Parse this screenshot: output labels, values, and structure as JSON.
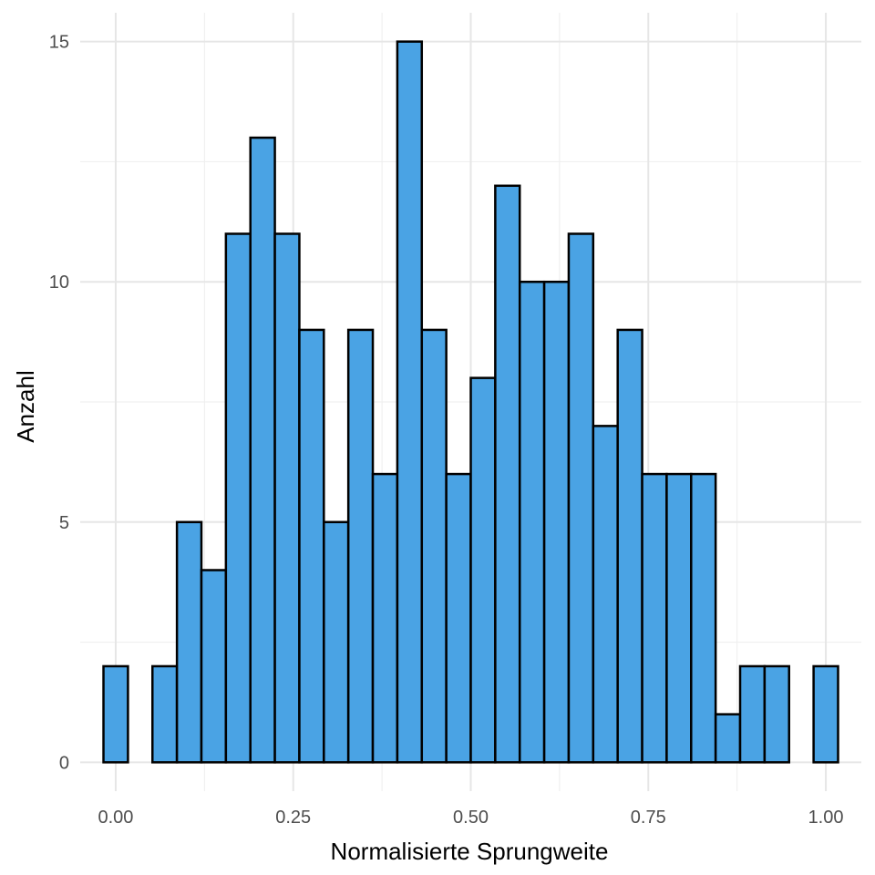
{
  "chart_data": {
    "type": "bar",
    "xlabel": "Normalisierte Sprungweite",
    "ylabel": "Anzahl",
    "xlim": [
      -0.05,
      1.05
    ],
    "ylim": [
      -0.6,
      15.6
    ],
    "x_ticks": [
      0.0,
      0.25,
      0.5,
      0.75,
      1.0
    ],
    "x_tick_labels": [
      "0.00",
      "0.25",
      "0.50",
      "0.75",
      "1.00"
    ],
    "y_ticks": [
      0,
      5,
      10,
      15
    ],
    "y_tick_labels": [
      "0",
      "5",
      "10",
      "15"
    ],
    "grid": true,
    "bar_color": "#4AA3E4",
    "bar_outline": "#000000",
    "bin_width": 0.03448,
    "bins": [
      {
        "x": 0.0,
        "count": 2
      },
      {
        "x": 0.03448,
        "count": 0
      },
      {
        "x": 0.06897,
        "count": 2
      },
      {
        "x": 0.10345,
        "count": 5
      },
      {
        "x": 0.13793,
        "count": 4
      },
      {
        "x": 0.17241,
        "count": 11
      },
      {
        "x": 0.2069,
        "count": 13
      },
      {
        "x": 0.24138,
        "count": 11
      },
      {
        "x": 0.27586,
        "count": 9
      },
      {
        "x": 0.31034,
        "count": 5
      },
      {
        "x": 0.34483,
        "count": 9
      },
      {
        "x": 0.37931,
        "count": 6
      },
      {
        "x": 0.41379,
        "count": 15
      },
      {
        "x": 0.44828,
        "count": 9
      },
      {
        "x": 0.48276,
        "count": 6
      },
      {
        "x": 0.51724,
        "count": 8
      },
      {
        "x": 0.55172,
        "count": 12
      },
      {
        "x": 0.58621,
        "count": 10
      },
      {
        "x": 0.62069,
        "count": 10
      },
      {
        "x": 0.65517,
        "count": 11
      },
      {
        "x": 0.68966,
        "count": 7
      },
      {
        "x": 0.72414,
        "count": 9
      },
      {
        "x": 0.75862,
        "count": 6
      },
      {
        "x": 0.7931,
        "count": 6
      },
      {
        "x": 0.82759,
        "count": 6
      },
      {
        "x": 0.86207,
        "count": 1
      },
      {
        "x": 0.89655,
        "count": 2
      },
      {
        "x": 0.93103,
        "count": 2
      },
      {
        "x": 0.96552,
        "count": 0
      },
      {
        "x": 1.0,
        "count": 2
      }
    ]
  }
}
